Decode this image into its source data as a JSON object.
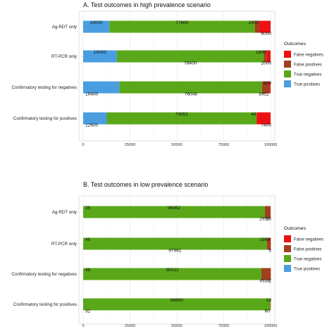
{
  "colors": {
    "false_negatives": "#ee1111",
    "false_positives": "#a0401e",
    "true_negatives": "#5aa819",
    "true_positives": "#4a9ee0",
    "grid": "#e8e8e8"
  },
  "chart_data": [
    {
      "type": "bar",
      "orientation": "horizontal",
      "stacked": true,
      "title": "A. Test outcomes in high prevalence scenario",
      "categories": [
        "Ag-RDT only",
        "RT-PCR only",
        "Confirmatory testing for negatives",
        "Confirmatory testing for positives"
      ],
      "series": [
        {
          "name": "True positives",
          "values": [
            14000,
            18000,
            19400,
            12600
          ]
        },
        {
          "name": "True negatives",
          "values": [
            77600,
            78400,
            76048,
            79952
          ]
        },
        {
          "name": "False positives",
          "values": [
            2400,
            1600,
            3952,
            48
          ]
        },
        {
          "name": "False negatives",
          "values": [
            6000,
            2000,
            600,
            7400
          ]
        }
      ],
      "data_labels": [
        [
          {
            "text": "14000",
            "series": 0,
            "pos": "top"
          },
          {
            "text": "77600",
            "series": 1,
            "pos": "top"
          },
          {
            "text": "2400",
            "series": 2,
            "pos": "top"
          },
          {
            "text": "6000",
            "series": 3,
            "pos": "bottom"
          }
        ],
        [
          {
            "text": "18000",
            "series": 0,
            "pos": "top"
          },
          {
            "text": "78400",
            "series": 1,
            "pos": "bottom"
          },
          {
            "text": "1600",
            "series": 2,
            "pos": "top"
          },
          {
            "text": "2000",
            "series": 3,
            "pos": "bottom"
          }
        ],
        [
          {
            "text": "19400",
            "series": 0,
            "pos": "bottom"
          },
          {
            "text": "76048",
            "series": 1,
            "pos": "bottom"
          },
          {
            "text": "3952",
            "series": 2,
            "pos": "bottom"
          },
          {
            "text": "600",
            "series": 3,
            "pos": "top"
          }
        ],
        [
          {
            "text": "12600",
            "series": 0,
            "pos": "bottom"
          },
          {
            "text": "79952",
            "series": 1,
            "pos": "top"
          },
          {
            "text": "48",
            "series": 2,
            "pos": "top"
          },
          {
            "text": "7400",
            "series": 3,
            "pos": "bottom"
          }
        ]
      ],
      "xticks": [
        0,
        25000,
        50000,
        75000,
        100000
      ],
      "xtick_labels": [
        "0",
        "25000",
        "50000",
        "75000",
        "100000"
      ],
      "xlim": [
        0,
        100000
      ],
      "grid": true,
      "legend": {
        "title": "Outcomes",
        "position": "right",
        "entries": [
          "False negatives",
          "False positives",
          "True negatives",
          "True positives"
        ]
      }
    },
    {
      "type": "bar",
      "orientation": "horizontal",
      "stacked": true,
      "title": "B. Test outcomes in low prevalence scenario",
      "categories": [
        "Ag-RDT only",
        "RT-PCR only",
        "Confirmatory testing for negatives",
        "Confirmatory testing for positives"
      ],
      "series": [
        {
          "name": "True positives",
          "values": [
            35,
            45,
            48,
            32
          ]
        },
        {
          "name": "True negatives",
          "values": [
            96952,
            97961,
            95012,
            99890
          ]
        },
        {
          "name": "False positives",
          "values": [
            2959,
            1999,
            4938,
            60
          ]
        },
        {
          "name": "False negatives",
          "values": [
            15,
            5,
            2,
            18
          ]
        }
      ],
      "data_labels": [
        [
          {
            "text": "35",
            "series": 0,
            "pos": "top"
          },
          {
            "text": "96952",
            "series": 1,
            "pos": "top"
          },
          {
            "text": "2959",
            "series": 2,
            "pos": "bottom"
          },
          {
            "text": "15",
            "series": 3,
            "pos": "bottom"
          }
        ],
        [
          {
            "text": "45",
            "series": 0,
            "pos": "top"
          },
          {
            "text": "97961",
            "series": 1,
            "pos": "bottom"
          },
          {
            "text": "1999",
            "series": 2,
            "pos": "top"
          },
          {
            "text": "5",
            "series": 3,
            "pos": "bottom"
          }
        ],
        [
          {
            "text": "48",
            "series": 0,
            "pos": "top"
          },
          {
            "text": "95012",
            "series": 1,
            "pos": "top"
          },
          {
            "text": "4938",
            "series": 2,
            "pos": "bottom"
          },
          {
            "text": "2",
            "series": 3,
            "pos": "bottom"
          }
        ],
        [
          {
            "text": "32",
            "series": 0,
            "pos": "bottom"
          },
          {
            "text": "99890",
            "series": 1,
            "pos": "top"
          },
          {
            "text": "60",
            "series": 2,
            "pos": "bottom"
          },
          {
            "text": "18",
            "series": 3,
            "pos": "top"
          }
        ]
      ],
      "xticks": [
        0,
        25000,
        50000,
        75000,
        100000
      ],
      "xtick_labels": [
        "0",
        "25000",
        "50000",
        "75000",
        "100000"
      ],
      "xlim": [
        0,
        100000
      ],
      "grid": true,
      "legend": {
        "title": "Outcomes",
        "position": "right",
        "entries": [
          "False negatives",
          "False positives",
          "True negatives",
          "True positives"
        ]
      }
    }
  ]
}
